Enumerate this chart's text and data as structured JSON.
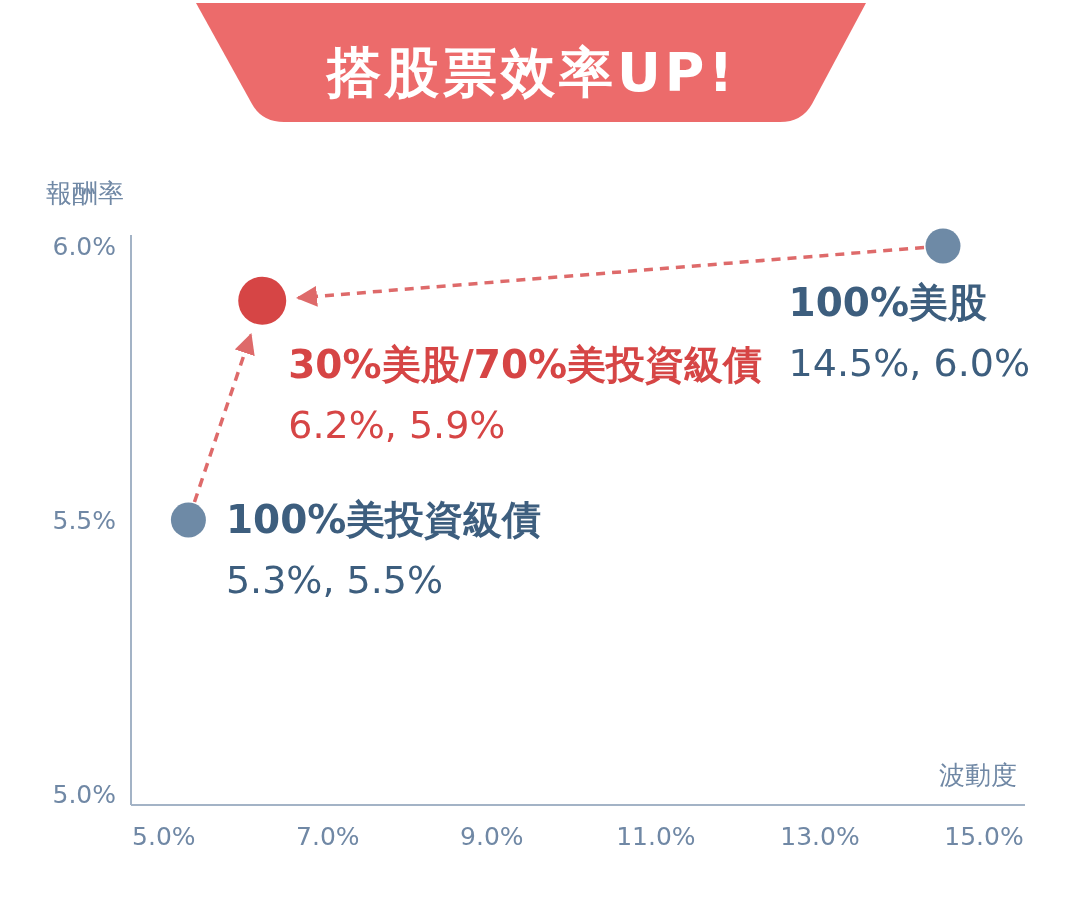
{
  "chart_data": {
    "type": "scatter",
    "title": "搭股票效率UP!",
    "xlabel": "波動度",
    "ylabel": "報酬率",
    "xlim": [
      4.6,
      15.5
    ],
    "ylim": [
      4.98,
      6.02
    ],
    "xticks": [
      {
        "value": 5,
        "label": "5.0%"
      },
      {
        "value": 7,
        "label": "7.0%"
      },
      {
        "value": 9,
        "label": "9.0%"
      },
      {
        "value": 11,
        "label": "11.0%"
      },
      {
        "value": 13,
        "label": "13.0%"
      },
      {
        "value": 15,
        "label": "15.0%"
      }
    ],
    "yticks": [
      {
        "value": 5,
        "label": "5.0%"
      },
      {
        "value": 5.5,
        "label": "5.5%"
      },
      {
        "value": 6,
        "label": "6.0%"
      }
    ],
    "marker": "circle",
    "series": [
      {
        "name": "100%美投資級債",
        "color": "#6e8aa6",
        "x": [
          5.3
        ],
        "values": [
          5.5
        ],
        "value_labels": [
          "5.3%, 5.5%"
        ]
      },
      {
        "name": "30%美股/70%美投資級債",
        "color": "#d64545",
        "x": [
          6.2
        ],
        "values": [
          5.9
        ],
        "value_labels": [
          "6.2%, 5.9%"
        ]
      },
      {
        "name": "100%美股",
        "color": "#6e8aa6",
        "x": [
          14.5
        ],
        "values": [
          6.0
        ],
        "value_labels": [
          "14.5%, 6.0%"
        ]
      }
    ]
  }
}
